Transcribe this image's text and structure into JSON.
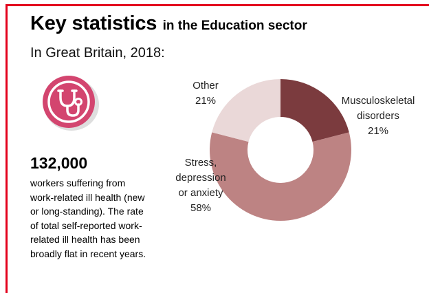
{
  "title": "Key statistics",
  "title_suffix": "in the Education sector",
  "subtitle": "In Great Britain, 2018:",
  "icon": "stethoscope-icon",
  "colors": {
    "accent": "#e3001b",
    "icon_pink": "#d3456f",
    "slice_musculoskeletal": "#7b3b3e",
    "slice_stress": "#bd8383",
    "slice_other": "#ead8d8"
  },
  "stat": {
    "number": "132,000",
    "description": "workers suffering from work-related ill health (new or long-standing). The rate of total self-reported work-related ill health has been broadly flat in recent years."
  },
  "chart_data": {
    "type": "pie",
    "donut": true,
    "title": "",
    "series": [
      {
        "name": "Musculoskeletal disorders",
        "value": 21,
        "label_lines": [
          "Musculoskeletal",
          "disorders",
          "21%"
        ]
      },
      {
        "name": "Stress, depression or anxiety",
        "value": 58,
        "label_lines": [
          "Stress,",
          "depression",
          "or anxiety",
          "58%"
        ]
      },
      {
        "name": "Other",
        "value": 21,
        "label_lines": [
          "Other",
          "21%"
        ]
      }
    ]
  }
}
